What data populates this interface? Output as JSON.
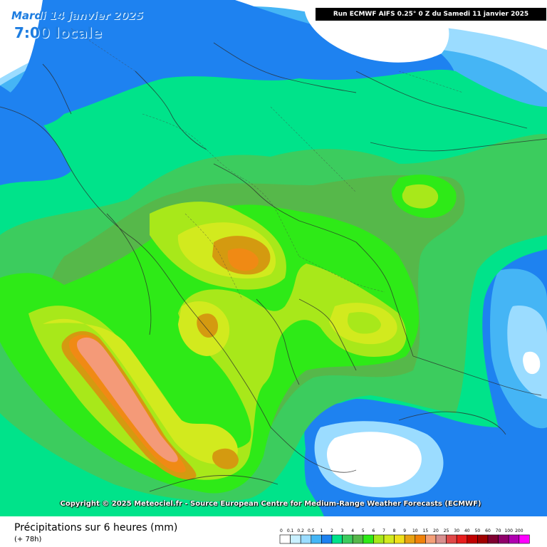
{
  "header": {
    "date": "Mardi 14 janvier 2025",
    "time": "7:00 locale",
    "run": "Run ECMWF AIFS 0.25° 0 Z du Samedi 11 janvier 2025"
  },
  "copyright": "Copyright © 2025 Meteociel.fr - Source European Centre for Medium-Range Weather Forecasts (ECMWF)",
  "footer": {
    "title": "Précipitations sur 6 heures (mm)",
    "lead": "(+ 78h)"
  },
  "scale": {
    "labels": [
      "0",
      "0.1",
      "0.2",
      "0.5",
      "1",
      "2",
      "3",
      "4",
      "5",
      "6",
      "7",
      "8",
      "9",
      "10",
      "15",
      "20",
      "25",
      "30",
      "40",
      "50",
      "60",
      "70",
      "100",
      "200"
    ],
    "colors": [
      "#ffffff",
      "#c9f0ff",
      "#9bdcff",
      "#45b5f5",
      "#1e82f0",
      "#00e38a",
      "#3ccc5e",
      "#56b84a",
      "#2eea17",
      "#a8e81a",
      "#d2ea1e",
      "#f0e01a",
      "#e8a212",
      "#f0820a",
      "#f4a078",
      "#d8908f",
      "#e04848",
      "#e81e1e",
      "#c00000",
      "#a00000",
      "#800030",
      "#90006a",
      "#b000b0",
      "#ff00ff"
    ]
  },
  "map_colors": {
    "background": "#ffffff",
    "very_light_blue": "#9bdcff",
    "light_blue": "#45b5f5",
    "blue": "#1e82f0",
    "teal": "#00e38a",
    "green": "#3ccc5e",
    "dark_green": "#56b84a",
    "bright_green": "#2eea17",
    "yellow_green": "#a8e81a",
    "yellow": "#d2ea1e",
    "orange_brown": "#d49a10",
    "orange": "#f08a14",
    "salmon": "#f49a78"
  }
}
